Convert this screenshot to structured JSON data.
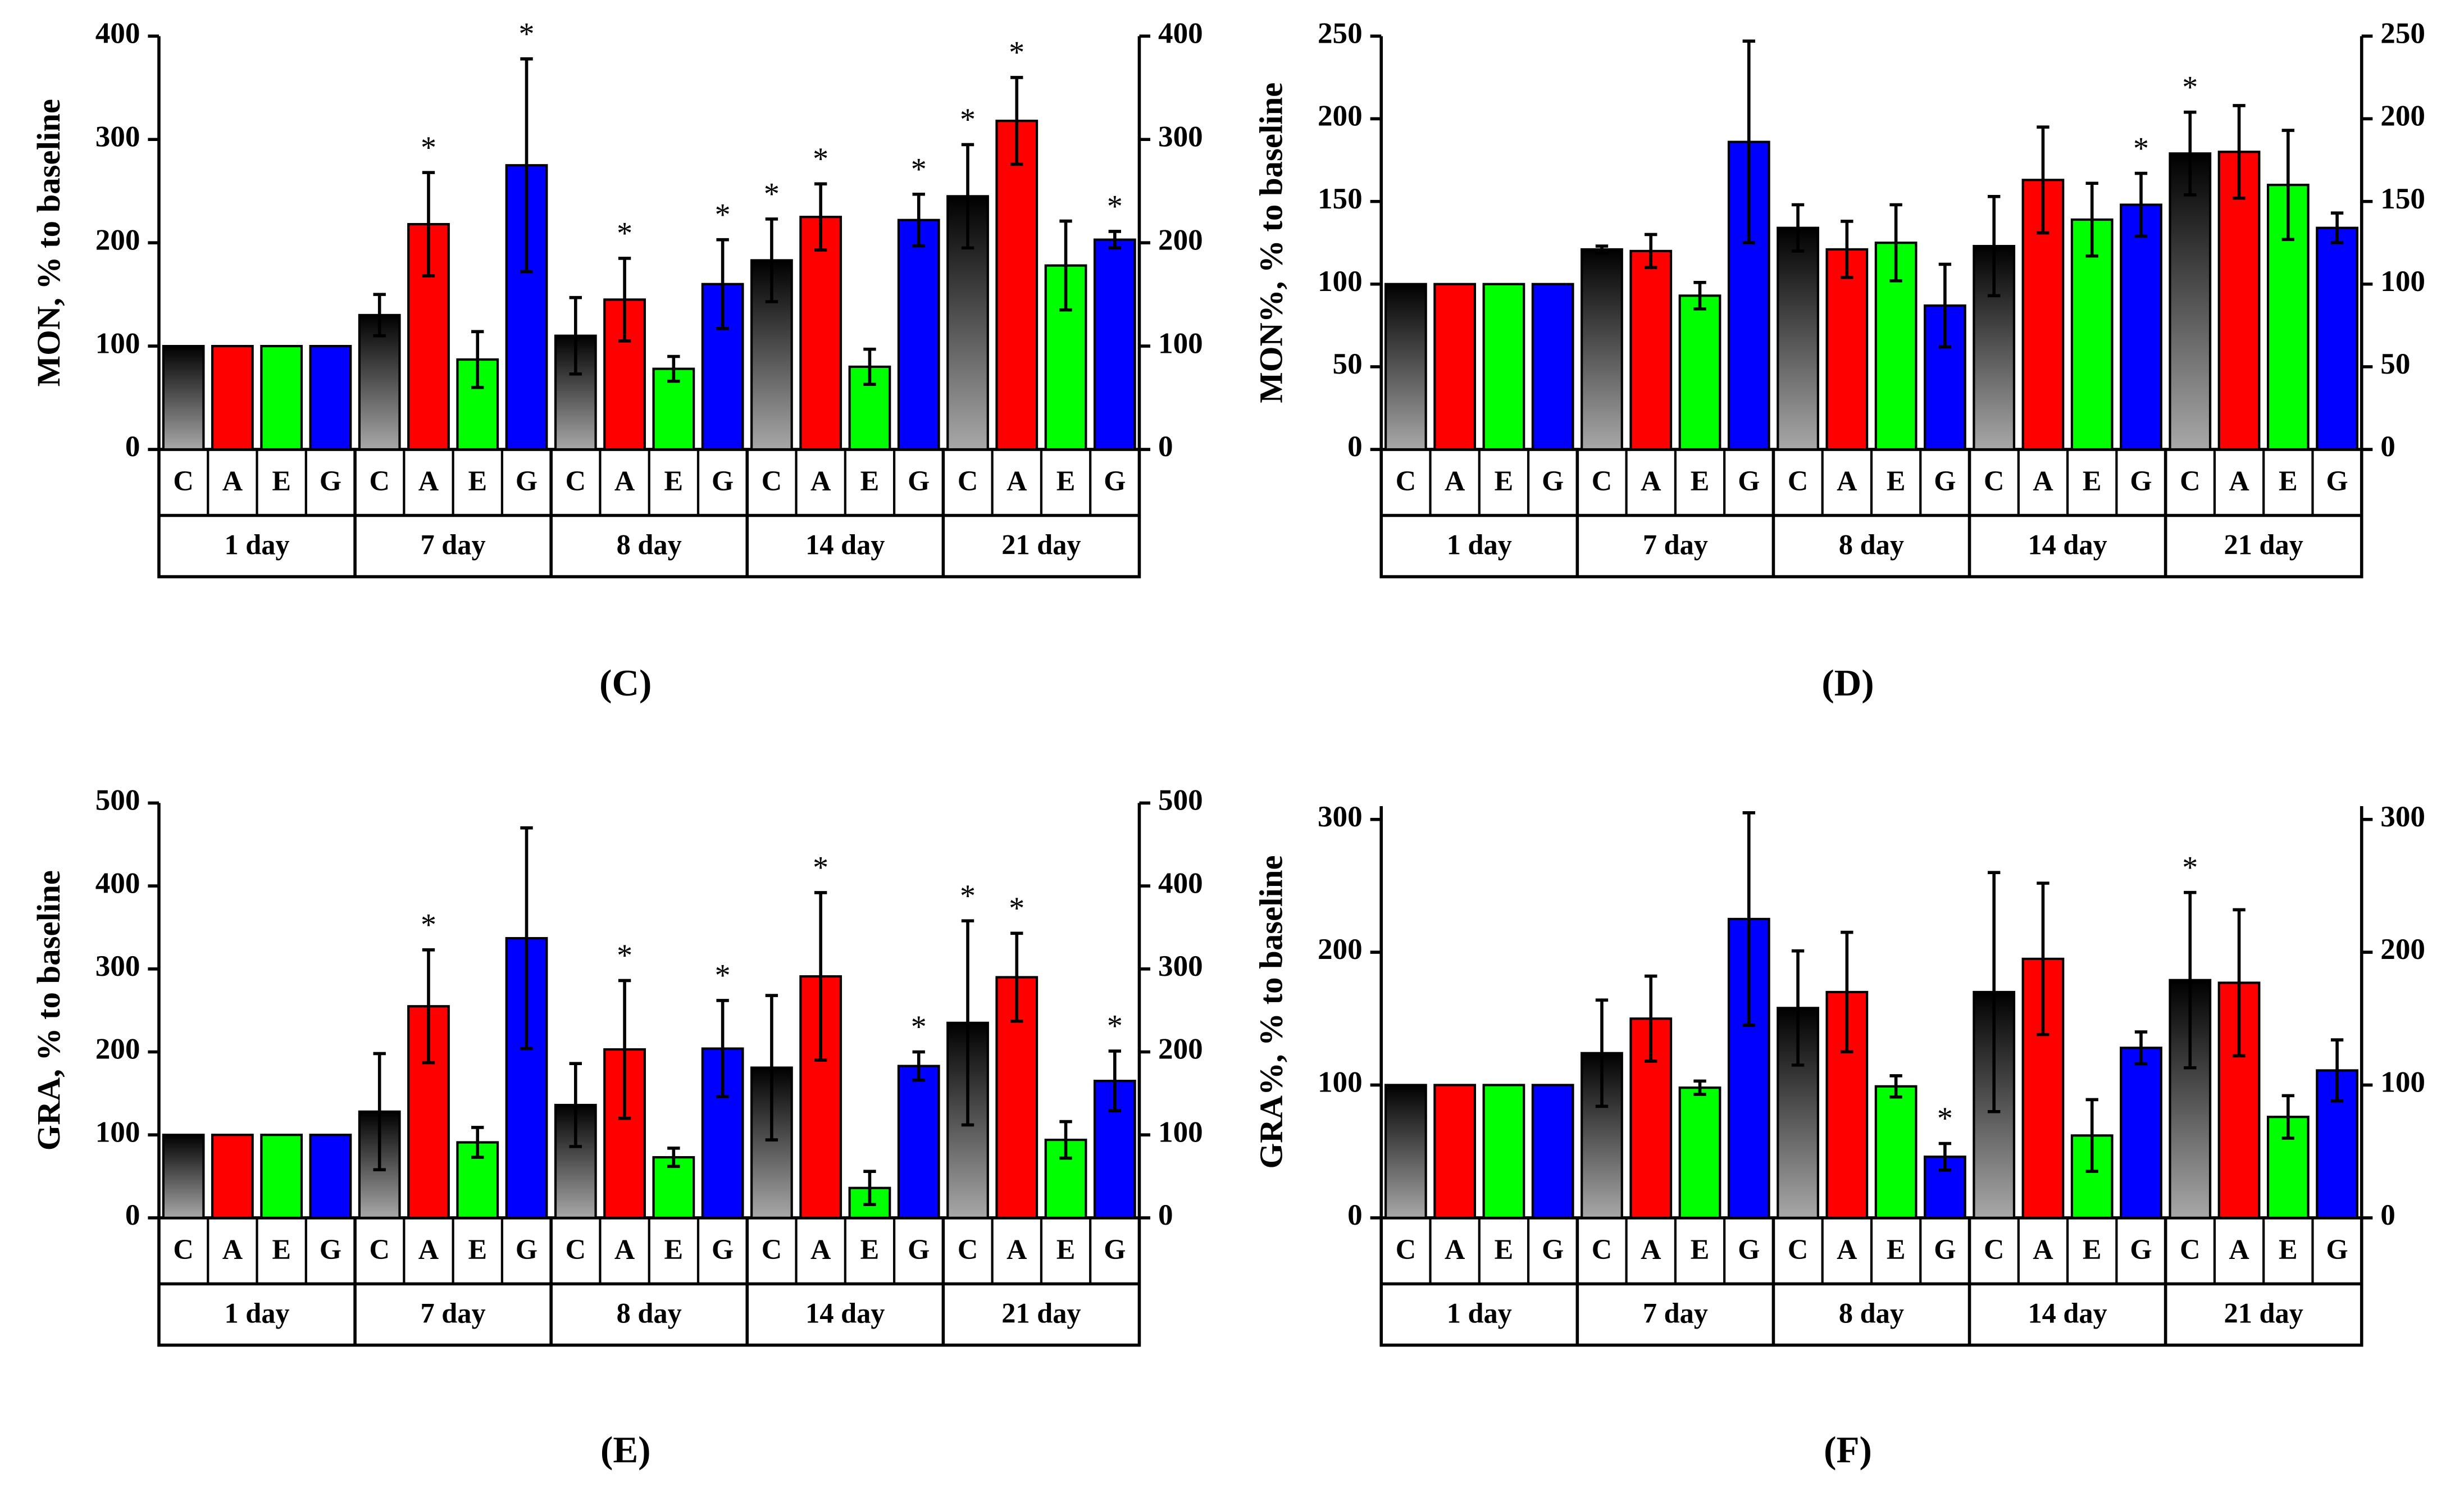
{
  "chart_data": [
    {
      "type": "bar",
      "panel": "(C)",
      "ylabel": "MON, % to baseline",
      "ylim": [
        0,
        400
      ],
      "yticks": [
        0,
        100,
        200,
        300,
        400
      ],
      "y2lim": [
        0,
        400
      ],
      "y2ticks": [
        0,
        100,
        200,
        300,
        400
      ],
      "groups": [
        "1 day",
        "7 day",
        "8 day",
        "14 day",
        "21 day"
      ],
      "series": [
        {
          "name": "C",
          "color": "#000000",
          "values": [
            100,
            130,
            110,
            183,
            245
          ],
          "errors": [
            0,
            20,
            37,
            40,
            50
          ],
          "annotations": [
            null,
            null,
            null,
            "*",
            "*"
          ]
        },
        {
          "name": "A",
          "color": "#ff0000",
          "values": [
            100,
            218,
            145,
            225,
            318
          ],
          "errors": [
            0,
            50,
            40,
            32,
            42
          ],
          "annotations": [
            null,
            "*",
            "*",
            "*",
            "*"
          ]
        },
        {
          "name": "E",
          "color": "#00ff00",
          "values": [
            100,
            87,
            78,
            80,
            178
          ],
          "errors": [
            0,
            27,
            12,
            17,
            43
          ],
          "annotations": [
            null,
            null,
            null,
            null,
            null
          ]
        },
        {
          "name": "G",
          "color": "#0000ff",
          "values": [
            100,
            275,
            160,
            222,
            203
          ],
          "errors": [
            0,
            103,
            43,
            25,
            8
          ],
          "annotations": [
            null,
            "*",
            "*",
            "*",
            "*"
          ]
        }
      ]
    },
    {
      "type": "bar",
      "panel": "(D)",
      "ylabel": "MON%, % to baseline",
      "ylim": [
        0,
        250
      ],
      "yticks": [
        0,
        50,
        100,
        150,
        200,
        250
      ],
      "y2lim": [
        0,
        250
      ],
      "y2ticks": [
        0,
        50,
        100,
        150,
        200,
        250
      ],
      "groups": [
        "1 day",
        "7 day",
        "8 day",
        "14 day",
        "21 day"
      ],
      "series": [
        {
          "name": "C",
          "color": "#000000",
          "values": [
            100,
            121,
            134,
            123,
            179
          ],
          "errors": [
            0,
            2,
            14,
            30,
            25
          ],
          "annotations": [
            null,
            null,
            null,
            null,
            "*"
          ]
        },
        {
          "name": "A",
          "color": "#ff0000",
          "values": [
            100,
            120,
            121,
            163,
            180
          ],
          "errors": [
            0,
            10,
            17,
            32,
            28
          ],
          "annotations": [
            null,
            null,
            null,
            null,
            null
          ]
        },
        {
          "name": "E",
          "color": "#00ff00",
          "values": [
            100,
            93,
            125,
            139,
            160
          ],
          "errors": [
            0,
            8,
            23,
            22,
            33
          ],
          "annotations": [
            null,
            null,
            null,
            null,
            null
          ]
        },
        {
          "name": "G",
          "color": "#0000ff",
          "values": [
            100,
            186,
            87,
            148,
            134
          ],
          "errors": [
            0,
            61,
            25,
            19,
            9
          ],
          "annotations": [
            null,
            null,
            null,
            "*",
            null
          ]
        }
      ]
    },
    {
      "type": "bar",
      "panel": "(E)",
      "ylabel": "GRA, % to baseline",
      "ylim": [
        0,
        500
      ],
      "yticks": [
        0,
        100,
        200,
        300,
        400,
        500
      ],
      "y2lim": [
        0,
        500
      ],
      "y2ticks": [
        0,
        100,
        200,
        300,
        400,
        500
      ],
      "groups": [
        "1 day",
        "7 day",
        "8 day",
        "14 day",
        "21 day"
      ],
      "series": [
        {
          "name": "C",
          "color": "#000000",
          "values": [
            100,
            128,
            136,
            181,
            235
          ],
          "errors": [
            0,
            70,
            50,
            87,
            123
          ],
          "annotations": [
            null,
            null,
            null,
            null,
            "*"
          ]
        },
        {
          "name": "A",
          "color": "#ff0000",
          "values": [
            100,
            255,
            203,
            291,
            290
          ],
          "errors": [
            0,
            68,
            83,
            101,
            53
          ],
          "annotations": [
            null,
            "*",
            "*",
            "*",
            "*"
          ]
        },
        {
          "name": "E",
          "color": "#00ff00",
          "values": [
            100,
            91,
            73,
            36,
            94
          ],
          "errors": [
            0,
            18,
            11,
            20,
            22
          ],
          "annotations": [
            null,
            null,
            null,
            null,
            null
          ]
        },
        {
          "name": "G",
          "color": "#0000ff",
          "values": [
            100,
            337,
            204,
            183,
            165
          ],
          "errors": [
            0,
            133,
            58,
            17,
            36
          ],
          "annotations": [
            null,
            null,
            "*",
            "*",
            "*"
          ]
        }
      ]
    },
    {
      "type": "bar",
      "panel": "(F)",
      "ylabel": "GRA%, % to baseline",
      "ylim": [
        0,
        310
      ],
      "yticks": [
        0,
        100,
        200,
        300
      ],
      "y2lim": [
        0,
        310
      ],
      "y2ticks": [
        0,
        100,
        200,
        300
      ],
      "groups": [
        "1 day",
        "7 day",
        "8 day",
        "14 day",
        "21 day"
      ],
      "series": [
        {
          "name": "C",
          "color": "#000000",
          "values": [
            100,
            124,
            158,
            170,
            179
          ],
          "errors": [
            0,
            40,
            43,
            90,
            66
          ],
          "annotations": [
            null,
            null,
            null,
            null,
            "*"
          ]
        },
        {
          "name": "A",
          "color": "#ff0000",
          "values": [
            100,
            150,
            170,
            195,
            177
          ],
          "errors": [
            0,
            32,
            45,
            57,
            55
          ],
          "annotations": [
            null,
            null,
            null,
            null,
            null
          ]
        },
        {
          "name": "E",
          "color": "#00ff00",
          "values": [
            100,
            98,
            99,
            62,
            76
          ],
          "errors": [
            0,
            5,
            8,
            27,
            16
          ],
          "annotations": [
            null,
            null,
            null,
            null,
            null
          ]
        },
        {
          "name": "G",
          "color": "#0000ff",
          "values": [
            100,
            225,
            46,
            128,
            111
          ],
          "errors": [
            0,
            80,
            10,
            12,
            23
          ],
          "annotations": [
            null,
            null,
            "*",
            null,
            null
          ]
        }
      ]
    }
  ]
}
